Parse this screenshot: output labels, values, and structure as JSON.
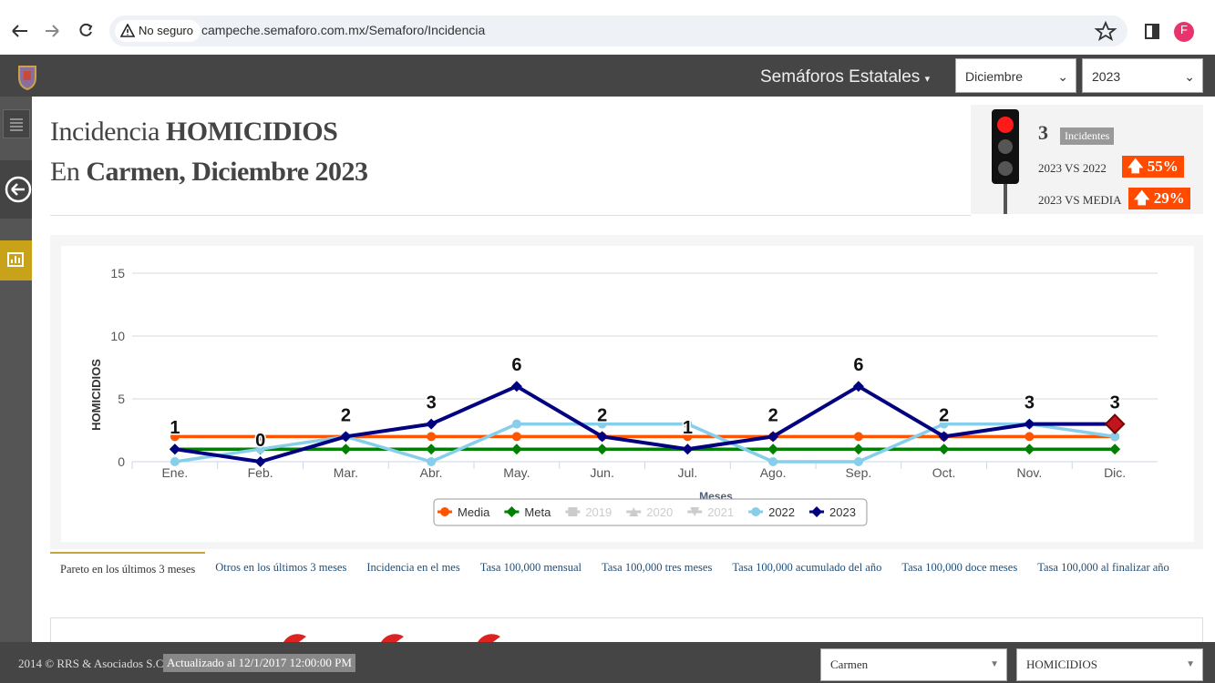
{
  "browser": {
    "security": "No seguro",
    "url": "campeche.semaforo.com.mx/Semaforo/Incidencia",
    "profile": "F"
  },
  "navbar": {
    "menu": "Semáforos Estatales",
    "month": "Diciembre",
    "year": "2023"
  },
  "header": {
    "title_prefix": "Incidencia",
    "title_crime": "HOMICIDIOS",
    "subtitle_prefix": "En",
    "subtitle_place": "Carmen, Diciembre 2023"
  },
  "summary": {
    "count": 3,
    "count_label": "Incidentes",
    "vs_prev_label": "2023 VS 2022",
    "vs_prev": "55%",
    "vs_media_label": "2023 VS MEDIA",
    "vs_media": "29%"
  },
  "chart_data": {
    "type": "line",
    "y_label": "HOMICIDIOS",
    "x_label": "Meses",
    "categories": [
      "Ene.",
      "Feb.",
      "Mar.",
      "Abr.",
      "May.",
      "Jun.",
      "Jul.",
      "Ago.",
      "Sep.",
      "Oct.",
      "Nov.",
      "Dic."
    ],
    "ylim": [
      0,
      15
    ],
    "yticks": [
      0,
      5,
      10,
      15
    ],
    "grid": true,
    "series": [
      {
        "name": "Media",
        "color": "#ff5500",
        "marker": "circle",
        "values": [
          2,
          2,
          2,
          2,
          2,
          2,
          2,
          2,
          2,
          2,
          2,
          2
        ]
      },
      {
        "name": "Meta",
        "color": "#008000",
        "marker": "diamond",
        "values": [
          1,
          1,
          1,
          1,
          1,
          1,
          1,
          1,
          1,
          1,
          1,
          1
        ]
      },
      {
        "name": "2019",
        "color": "#cccccc",
        "marker": "square",
        "visible": false
      },
      {
        "name": "2020",
        "color": "#cccccc",
        "marker": "triangle",
        "visible": false
      },
      {
        "name": "2021",
        "color": "#cccccc",
        "marker": "triangle-down",
        "visible": false
      },
      {
        "name": "2022",
        "color": "#87ceeb",
        "marker": "circle",
        "values": [
          0,
          1,
          2,
          0,
          3,
          3,
          3,
          0,
          0,
          3,
          3,
          2
        ]
      },
      {
        "name": "2023",
        "color": "#000080",
        "marker": "diamond",
        "data_labels": true,
        "values": [
          1,
          0,
          2,
          3,
          6,
          2,
          1,
          2,
          6,
          2,
          3,
          3
        ]
      }
    ]
  },
  "tabs": [
    "Pareto en los últimos 3 meses",
    "Otros en los últimos 3 meses",
    "Incidencia en el mes",
    "Tasa 100,000 mensual",
    "Tasa 100,000 tres meses",
    "Tasa 100,000 acumulado del año",
    "Tasa 100,000 doce meses",
    "Tasa 100,000 al finalizar año"
  ],
  "footer": {
    "copyright": "2014 © RRS & Asociados S.C.",
    "updated": "Actualizado al 12/1/2017 12:00:00 PM",
    "place": "Carmen",
    "crime": "HOMICIDIOS"
  }
}
